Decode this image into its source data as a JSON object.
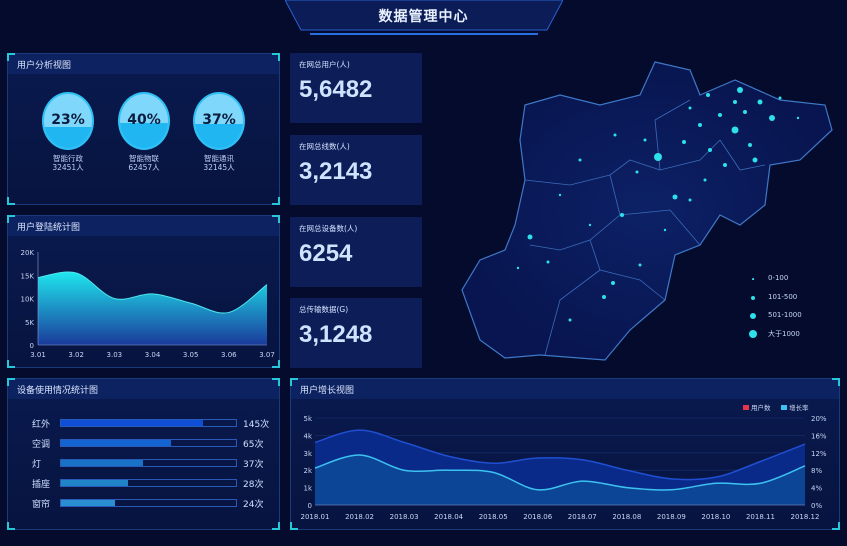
{
  "header": {
    "title": "数据管理中心"
  },
  "user_analysis": {
    "title": "用户分析视图",
    "items": [
      {
        "percent": 23,
        "label": "23%",
        "name": "智能行政",
        "count": "32451人"
      },
      {
        "percent": 40,
        "label": "40%",
        "name": "智能物联",
        "count": "62457人"
      },
      {
        "percent": 37,
        "label": "37%",
        "name": "智能通讯",
        "count": "32145人"
      }
    ]
  },
  "stats": [
    {
      "label": "在网总用户(人)",
      "value": "5,6482"
    },
    {
      "label": "在网总线数(人)",
      "value": "3,2143"
    },
    {
      "label": "在网总设备数(人)",
      "value": "6254"
    },
    {
      "label": "总传输数据(G)",
      "value": "3,1248"
    }
  ],
  "map_legend": [
    {
      "label": "0-100"
    },
    {
      "label": "101-500"
    },
    {
      "label": "501-1000"
    },
    {
      "label": "大于1000"
    }
  ],
  "device_usage": {
    "title": "设备使用情况统计图",
    "items": [
      {
        "name": "红外",
        "value": "145次",
        "fill_percent": 81,
        "color": "#0f4fd8"
      },
      {
        "name": "空调",
        "value": "65次",
        "fill_percent": 63,
        "color": "#1363d0"
      },
      {
        "name": "灯",
        "value": "37次",
        "fill_percent": 47,
        "color": "#1873c8"
      },
      {
        "name": "插座",
        "value": "28次",
        "fill_percent": 38,
        "color": "#2184c8"
      },
      {
        "name": "窗帘",
        "value": "24次",
        "fill_percent": 31,
        "color": "#2a8fd0"
      }
    ]
  },
  "chart_data": [
    {
      "type": "area",
      "title": "用户登陆统计图",
      "categories": [
        "3.01",
        "3.02",
        "3.03",
        "3.04",
        "3.05",
        "3.06",
        "3.07"
      ],
      "values": [
        14500,
        15500,
        10000,
        11000,
        9000,
        7000,
        13000
      ],
      "ylim": [
        0,
        20000
      ],
      "yticks": [
        "0",
        "5K",
        "10K",
        "15K",
        "20K"
      ]
    },
    {
      "type": "area",
      "title": "用户增长视图",
      "categories": [
        "2018.01",
        "2018.02",
        "2018.03",
        "2018.04",
        "2018.05",
        "2018.06",
        "2018.07",
        "2018.08",
        "2018.09",
        "2018.10",
        "2018.11",
        "2018.12"
      ],
      "series": [
        {
          "name": "用户数",
          "axis": "left",
          "values": [
            3600,
            4300,
            3600,
            2800,
            2400,
            2700,
            2600,
            2000,
            1500,
            1600,
            2500,
            3500
          ],
          "color": "#1f4fd0",
          "legend_color": "#e8344a"
        },
        {
          "name": "增长率",
          "axis": "right",
          "values": [
            8.5,
            11.5,
            8,
            8,
            7.5,
            3.5,
            5.5,
            4,
            3.5,
            5,
            5,
            9
          ],
          "color": "#3cc2f0"
        }
      ],
      "ylim_left": [
        0,
        5000
      ],
      "ylim_right": [
        0,
        20
      ],
      "yticks_left": [
        "0",
        "1k",
        "2k",
        "3k",
        "4k",
        "5k"
      ],
      "yticks_right": [
        "0%",
        "4%",
        "8%",
        "12%",
        "16%",
        "20%"
      ],
      "legend": "top-right",
      "grid": true
    }
  ]
}
